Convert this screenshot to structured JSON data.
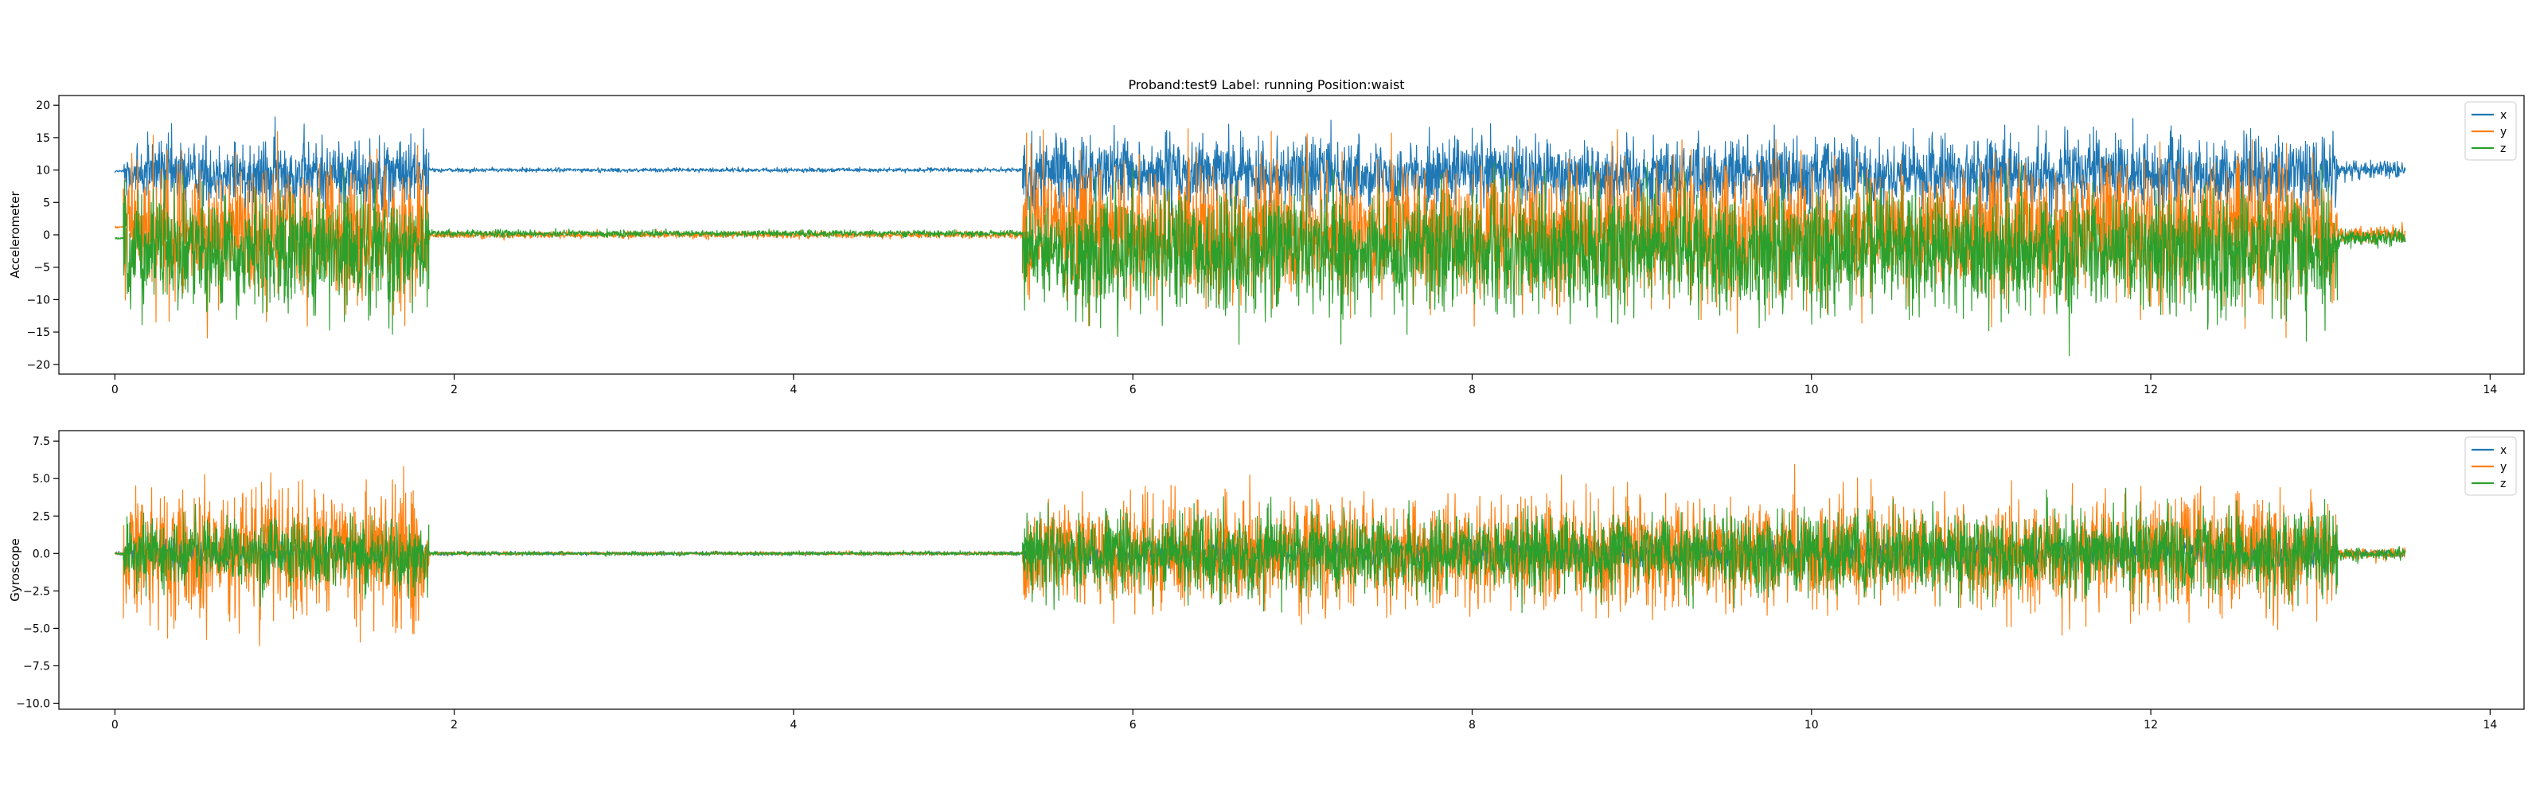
{
  "title": "Proband:test9 Label: running Position:waist",
  "chart_data": [
    {
      "type": "line",
      "ylabel": "Accelerometer",
      "xlim": [
        -0.33,
        14.2
      ],
      "ylim": [
        -21.5,
        21.5
      ],
      "xticks": [
        0,
        2,
        4,
        6,
        8,
        10,
        12,
        14
      ],
      "yticks": [
        -20,
        -15,
        -10,
        -5,
        0,
        5,
        10,
        15,
        20
      ],
      "grid": false,
      "legend": "top-right",
      "series": [
        {
          "name": "x",
          "color": "#1f77b4",
          "segments": [
            {
              "x": [
                0.0,
                0.05
              ],
              "mean": 9.8,
              "amp": 0.5
            },
            {
              "x": [
                0.05,
                1.85
              ],
              "mean": 9.5,
              "amp": 10,
              "clip": 19.6
            },
            {
              "x": [
                1.85,
                5.35
              ],
              "mean": 10.0,
              "amp": 0.6
            },
            {
              "x": [
                5.35,
                13.1
              ],
              "mean": 9.5,
              "amp": 10,
              "clip": 19.6
            },
            {
              "x": [
                13.1,
                13.5
              ],
              "mean": 10.0,
              "amp": 2.5
            }
          ]
        },
        {
          "name": "y",
          "color": "#ff7f0e",
          "segments": [
            {
              "x": [
                0.0,
                0.05
              ],
              "mean": 1.2,
              "amp": 0.5
            },
            {
              "x": [
                0.05,
                1.85
              ],
              "mean": 0.5,
              "amp": 19
            },
            {
              "x": [
                1.85,
                5.35
              ],
              "mean": 0.0,
              "amp": 1.0
            },
            {
              "x": [
                5.35,
                13.1
              ],
              "mean": 0.5,
              "amp": 19
            },
            {
              "x": [
                13.1,
                13.5
              ],
              "mean": 0.0,
              "amp": 2.5
            }
          ]
        },
        {
          "name": "z",
          "color": "#2ca02c",
          "segments": [
            {
              "x": [
                0.0,
                0.05
              ],
              "mean": -0.5,
              "amp": 0.5
            },
            {
              "x": [
                0.05,
                1.85
              ],
              "mean": -2.5,
              "amp": 17
            },
            {
              "x": [
                1.85,
                5.35
              ],
              "mean": 0.2,
              "amp": 1.0
            },
            {
              "x": [
                5.35,
                13.1
              ],
              "mean": -2.5,
              "amp": 17
            },
            {
              "x": [
                13.1,
                13.5
              ],
              "mean": -0.5,
              "amp": 2.5
            }
          ]
        }
      ]
    },
    {
      "type": "line",
      "ylabel": "Gyroscope",
      "xlim": [
        -0.33,
        14.2
      ],
      "ylim": [
        -10.4,
        8.2
      ],
      "xticks": [
        0,
        2,
        4,
        6,
        8,
        10,
        12,
        14
      ],
      "yticks": [
        -10.0,
        -7.5,
        -5.0,
        -2.5,
        0.0,
        2.5,
        5.0,
        7.5
      ],
      "grid": false,
      "legend": "top-right",
      "series": [
        {
          "name": "x",
          "color": "#1f77b4",
          "segments": [
            {
              "x": [
                0.0,
                0.05
              ],
              "mean": 0.0,
              "amp": 0.2
            },
            {
              "x": [
                0.05,
                1.85
              ],
              "mean": 0.0,
              "amp": 1.5
            },
            {
              "x": [
                1.85,
                5.35
              ],
              "mean": 0.0,
              "amp": 0.2
            },
            {
              "x": [
                5.35,
                13.1
              ],
              "mean": 0.0,
              "amp": 1.5
            },
            {
              "x": [
                13.1,
                13.5
              ],
              "mean": 0.0,
              "amp": 0.4
            }
          ]
        },
        {
          "name": "y",
          "color": "#ff7f0e",
          "segments": [
            {
              "x": [
                0.0,
                0.05
              ],
              "mean": 0.0,
              "amp": 0.2
            },
            {
              "x": [
                0.05,
                1.85
              ],
              "mean": 0.0,
              "amp": 8.2
            },
            {
              "x": [
                1.85,
                5.35
              ],
              "mean": 0.0,
              "amp": 0.2
            },
            {
              "x": [
                5.35,
                13.1
              ],
              "mean": 0.0,
              "amp": 6.5
            },
            {
              "x": [
                13.1,
                13.5
              ],
              "mean": 0.0,
              "amp": 0.8
            }
          ]
        },
        {
          "name": "z",
          "color": "#2ca02c",
          "segments": [
            {
              "x": [
                0.0,
                0.05
              ],
              "mean": 0.0,
              "amp": 0.2
            },
            {
              "x": [
                0.05,
                1.85
              ],
              "mean": 0.0,
              "amp": 4.2
            },
            {
              "x": [
                1.85,
                5.35
              ],
              "mean": 0.0,
              "amp": 0.25
            },
            {
              "x": [
                5.35,
                13.1
              ],
              "mean": 0.0,
              "amp": 5.0
            },
            {
              "x": [
                13.1,
                13.5
              ],
              "mean": 0.0,
              "amp": 0.8
            }
          ]
        }
      ]
    }
  ]
}
